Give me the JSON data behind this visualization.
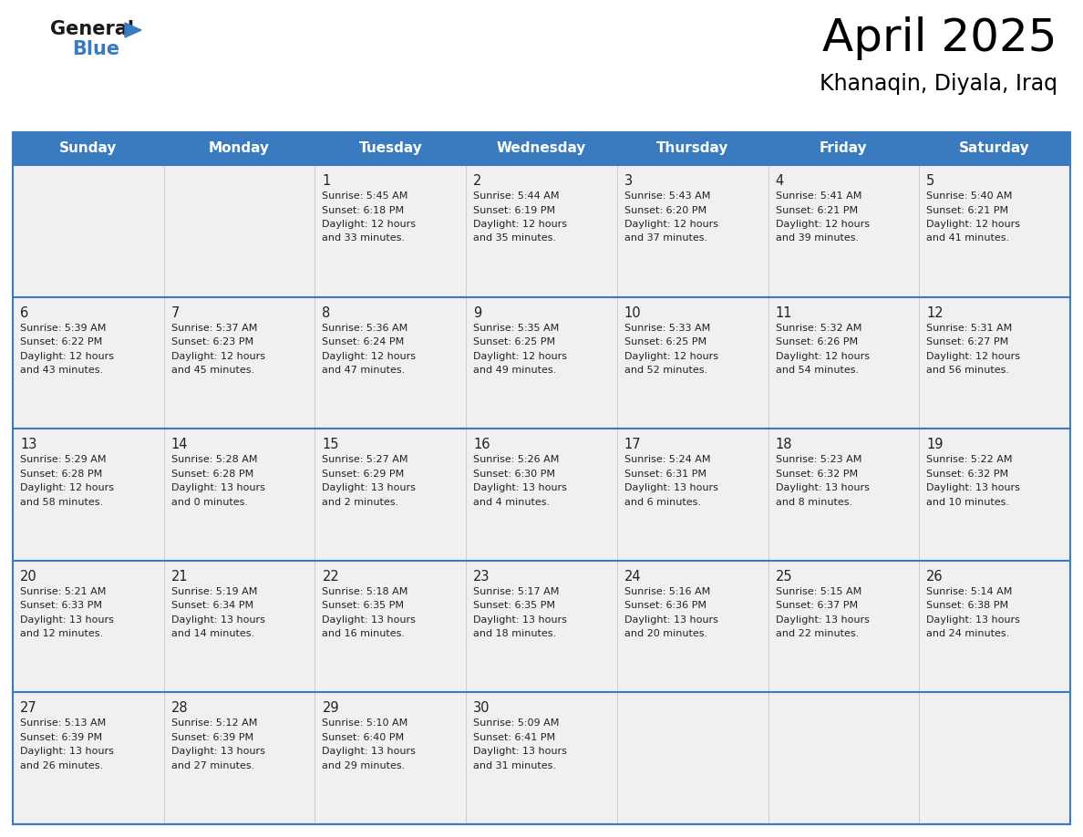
{
  "title": "April 2025",
  "subtitle": "Khanaqin, Diyala, Iraq",
  "days_of_week": [
    "Sunday",
    "Monday",
    "Tuesday",
    "Wednesday",
    "Thursday",
    "Friday",
    "Saturday"
  ],
  "header_bg": "#3a7bbf",
  "header_text": "#ffffff",
  "cell_bg_odd": "#efefef",
  "cell_bg_even": "#f8f8f8",
  "row_separator_color": "#3a7bbf",
  "text_color": "#222222",
  "calendar_data": [
    [
      {
        "day": null,
        "sunrise": null,
        "sunset": null,
        "daylight_h": null,
        "daylight_m": null
      },
      {
        "day": null,
        "sunrise": null,
        "sunset": null,
        "daylight_h": null,
        "daylight_m": null
      },
      {
        "day": 1,
        "sunrise": "5:45 AM",
        "sunset": "6:18 PM",
        "daylight_h": "12 hours",
        "daylight_m": "and 33 minutes."
      },
      {
        "day": 2,
        "sunrise": "5:44 AM",
        "sunset": "6:19 PM",
        "daylight_h": "12 hours",
        "daylight_m": "and 35 minutes."
      },
      {
        "day": 3,
        "sunrise": "5:43 AM",
        "sunset": "6:20 PM",
        "daylight_h": "12 hours",
        "daylight_m": "and 37 minutes."
      },
      {
        "day": 4,
        "sunrise": "5:41 AM",
        "sunset": "6:21 PM",
        "daylight_h": "12 hours",
        "daylight_m": "and 39 minutes."
      },
      {
        "day": 5,
        "sunrise": "5:40 AM",
        "sunset": "6:21 PM",
        "daylight_h": "12 hours",
        "daylight_m": "and 41 minutes."
      }
    ],
    [
      {
        "day": 6,
        "sunrise": "5:39 AM",
        "sunset": "6:22 PM",
        "daylight_h": "12 hours",
        "daylight_m": "and 43 minutes."
      },
      {
        "day": 7,
        "sunrise": "5:37 AM",
        "sunset": "6:23 PM",
        "daylight_h": "12 hours",
        "daylight_m": "and 45 minutes."
      },
      {
        "day": 8,
        "sunrise": "5:36 AM",
        "sunset": "6:24 PM",
        "daylight_h": "12 hours",
        "daylight_m": "and 47 minutes."
      },
      {
        "day": 9,
        "sunrise": "5:35 AM",
        "sunset": "6:25 PM",
        "daylight_h": "12 hours",
        "daylight_m": "and 49 minutes."
      },
      {
        "day": 10,
        "sunrise": "5:33 AM",
        "sunset": "6:25 PM",
        "daylight_h": "12 hours",
        "daylight_m": "and 52 minutes."
      },
      {
        "day": 11,
        "sunrise": "5:32 AM",
        "sunset": "6:26 PM",
        "daylight_h": "12 hours",
        "daylight_m": "and 54 minutes."
      },
      {
        "day": 12,
        "sunrise": "5:31 AM",
        "sunset": "6:27 PM",
        "daylight_h": "12 hours",
        "daylight_m": "and 56 minutes."
      }
    ],
    [
      {
        "day": 13,
        "sunrise": "5:29 AM",
        "sunset": "6:28 PM",
        "daylight_h": "12 hours",
        "daylight_m": "and 58 minutes."
      },
      {
        "day": 14,
        "sunrise": "5:28 AM",
        "sunset": "6:28 PM",
        "daylight_h": "13 hours",
        "daylight_m": "and 0 minutes."
      },
      {
        "day": 15,
        "sunrise": "5:27 AM",
        "sunset": "6:29 PM",
        "daylight_h": "13 hours",
        "daylight_m": "and 2 minutes."
      },
      {
        "day": 16,
        "sunrise": "5:26 AM",
        "sunset": "6:30 PM",
        "daylight_h": "13 hours",
        "daylight_m": "and 4 minutes."
      },
      {
        "day": 17,
        "sunrise": "5:24 AM",
        "sunset": "6:31 PM",
        "daylight_h": "13 hours",
        "daylight_m": "and 6 minutes."
      },
      {
        "day": 18,
        "sunrise": "5:23 AM",
        "sunset": "6:32 PM",
        "daylight_h": "13 hours",
        "daylight_m": "and 8 minutes."
      },
      {
        "day": 19,
        "sunrise": "5:22 AM",
        "sunset": "6:32 PM",
        "daylight_h": "13 hours",
        "daylight_m": "and 10 minutes."
      }
    ],
    [
      {
        "day": 20,
        "sunrise": "5:21 AM",
        "sunset": "6:33 PM",
        "daylight_h": "13 hours",
        "daylight_m": "and 12 minutes."
      },
      {
        "day": 21,
        "sunrise": "5:19 AM",
        "sunset": "6:34 PM",
        "daylight_h": "13 hours",
        "daylight_m": "and 14 minutes."
      },
      {
        "day": 22,
        "sunrise": "5:18 AM",
        "sunset": "6:35 PM",
        "daylight_h": "13 hours",
        "daylight_m": "and 16 minutes."
      },
      {
        "day": 23,
        "sunrise": "5:17 AM",
        "sunset": "6:35 PM",
        "daylight_h": "13 hours",
        "daylight_m": "and 18 minutes."
      },
      {
        "day": 24,
        "sunrise": "5:16 AM",
        "sunset": "6:36 PM",
        "daylight_h": "13 hours",
        "daylight_m": "and 20 minutes."
      },
      {
        "day": 25,
        "sunrise": "5:15 AM",
        "sunset": "6:37 PM",
        "daylight_h": "13 hours",
        "daylight_m": "and 22 minutes."
      },
      {
        "day": 26,
        "sunrise": "5:14 AM",
        "sunset": "6:38 PM",
        "daylight_h": "13 hours",
        "daylight_m": "and 24 minutes."
      }
    ],
    [
      {
        "day": 27,
        "sunrise": "5:13 AM",
        "sunset": "6:39 PM",
        "daylight_h": "13 hours",
        "daylight_m": "and 26 minutes."
      },
      {
        "day": 28,
        "sunrise": "5:12 AM",
        "sunset": "6:39 PM",
        "daylight_h": "13 hours",
        "daylight_m": "and 27 minutes."
      },
      {
        "day": 29,
        "sunrise": "5:10 AM",
        "sunset": "6:40 PM",
        "daylight_h": "13 hours",
        "daylight_m": "and 29 minutes."
      },
      {
        "day": 30,
        "sunrise": "5:09 AM",
        "sunset": "6:41 PM",
        "daylight_h": "13 hours",
        "daylight_m": "and 31 minutes."
      },
      {
        "day": null,
        "sunrise": null,
        "sunset": null,
        "daylight_h": null,
        "daylight_m": null
      },
      {
        "day": null,
        "sunrise": null,
        "sunset": null,
        "daylight_h": null,
        "daylight_m": null
      },
      {
        "day": null,
        "sunrise": null,
        "sunset": null,
        "daylight_h": null,
        "daylight_m": null
      }
    ]
  ]
}
